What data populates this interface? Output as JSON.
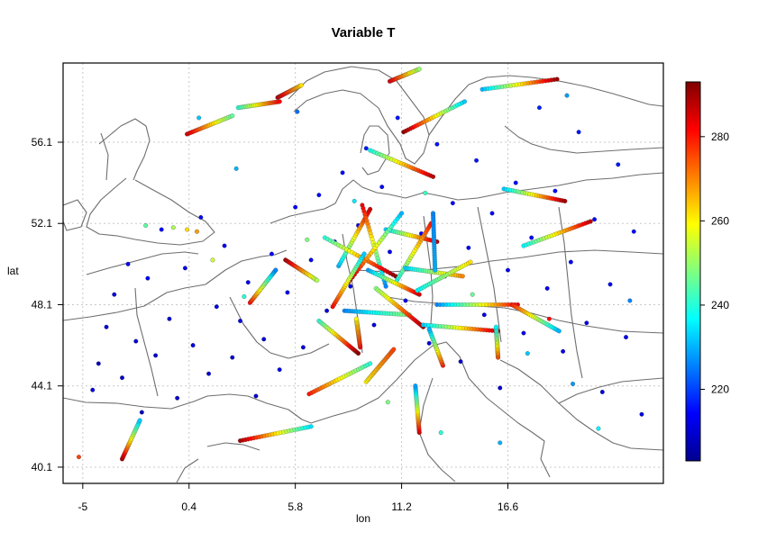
{
  "chart_data": {
    "type": "scatter",
    "title": "Variable T",
    "xlabel": "lon",
    "ylabel": "lat",
    "xlim": [
      -6.0,
      24.5
    ],
    "ylim": [
      39.3,
      60.0
    ],
    "x_ticks": [
      -5,
      0.4,
      5.8,
      11.2,
      16.6
    ],
    "x_tick_labels": [
      "-5",
      "0.4",
      "5.8",
      "11.2",
      "16.6"
    ],
    "y_ticks": [
      40.1,
      44.1,
      48.1,
      52.1,
      56.1
    ],
    "y_tick_labels": [
      "40.1",
      "44.1",
      "48.1",
      "52.1",
      "56.1"
    ],
    "grid": true,
    "basemap": "Europe coastlines and country borders",
    "colorbar": {
      "label": "",
      "range": [
        203,
        293
      ],
      "ticks": [
        220,
        240,
        260,
        280
      ],
      "tick_labels": [
        "220",
        "240",
        "260",
        "280"
      ],
      "colormap": "jet"
    },
    "series": [
      {
        "note_type": "scattered surface/low-level observations",
        "points": [
          [
            -4.5,
            43.9,
            212
          ],
          [
            -4.2,
            45.2,
            208
          ],
          [
            -3.8,
            47.0,
            210
          ],
          [
            -3.4,
            48.6,
            211
          ],
          [
            -3.0,
            44.5,
            209
          ],
          [
            -2.7,
            50.1,
            212
          ],
          [
            -2.3,
            46.3,
            210
          ],
          [
            -2.0,
            42.8,
            208
          ],
          [
            -1.7,
            49.4,
            213
          ],
          [
            -1.3,
            45.6,
            209
          ],
          [
            -1.0,
            51.8,
            214
          ],
          [
            -0.6,
            47.4,
            210
          ],
          [
            -0.2,
            43.5,
            209
          ],
          [
            0.2,
            49.9,
            212
          ],
          [
            0.6,
            46.1,
            211
          ],
          [
            1.0,
            52.4,
            215
          ],
          [
            1.4,
            44.7,
            210
          ],
          [
            1.8,
            48.0,
            211
          ],
          [
            2.2,
            51.0,
            213
          ],
          [
            2.6,
            45.5,
            210
          ],
          [
            3.0,
            47.3,
            212
          ],
          [
            3.4,
            49.2,
            213
          ],
          [
            3.8,
            43.6,
            209
          ],
          [
            4.2,
            46.4,
            210
          ],
          [
            4.6,
            50.6,
            214
          ],
          [
            5.0,
            44.9,
            211
          ],
          [
            5.4,
            48.7,
            212
          ],
          [
            5.8,
            52.9,
            214
          ],
          [
            6.2,
            46.0,
            210
          ],
          [
            6.6,
            50.3,
            213
          ],
          [
            7.0,
            53.5,
            215
          ],
          [
            7.4,
            47.8,
            211
          ],
          [
            7.8,
            51.2,
            213
          ],
          [
            8.2,
            54.6,
            215
          ],
          [
            8.6,
            49.0,
            212
          ],
          [
            9.0,
            52.0,
            214
          ],
          [
            9.4,
            55.8,
            216
          ],
          [
            9.8,
            47.1,
            211
          ],
          [
            10.2,
            53.9,
            214
          ],
          [
            10.6,
            50.7,
            213
          ],
          [
            11.0,
            57.3,
            216
          ],
          [
            11.4,
            48.3,
            212
          ],
          [
            11.8,
            54.8,
            215
          ],
          [
            12.2,
            51.6,
            214
          ],
          [
            12.6,
            46.2,
            211
          ],
          [
            13.0,
            56.0,
            216
          ],
          [
            13.4,
            49.5,
            213
          ],
          [
            13.8,
            53.1,
            215
          ],
          [
            14.2,
            45.3,
            210
          ],
          [
            14.6,
            50.9,
            214
          ],
          [
            15.0,
            55.2,
            216
          ],
          [
            15.4,
            47.6,
            212
          ],
          [
            15.8,
            52.6,
            214
          ],
          [
            16.2,
            44.0,
            210
          ],
          [
            16.6,
            49.8,
            213
          ],
          [
            17.0,
            54.1,
            215
          ],
          [
            17.4,
            46.7,
            212
          ],
          [
            17.8,
            51.4,
            214
          ],
          [
            18.2,
            57.8,
            217
          ],
          [
            18.6,
            48.9,
            213
          ],
          [
            19.0,
            53.7,
            215
          ],
          [
            19.4,
            45.8,
            212
          ],
          [
            19.8,
            50.2,
            214
          ],
          [
            20.2,
            56.6,
            216
          ],
          [
            20.6,
            47.2,
            213
          ],
          [
            21.0,
            52.3,
            215
          ],
          [
            21.4,
            43.8,
            211
          ],
          [
            21.8,
            49.1,
            214
          ],
          [
            22.2,
            55.0,
            216
          ],
          [
            22.6,
            46.5,
            213
          ],
          [
            23.0,
            51.7,
            215
          ],
          [
            23.4,
            42.7,
            211
          ],
          [
            -0.4,
            51.9,
            252
          ],
          [
            0.3,
            51.8,
            262
          ],
          [
            0.8,
            51.7,
            268
          ],
          [
            -1.8,
            52.0,
            245
          ],
          [
            1.6,
            50.3,
            255
          ],
          [
            3.2,
            48.5,
            240
          ],
          [
            4.8,
            49.8,
            238
          ],
          [
            6.4,
            51.3,
            248
          ],
          [
            8.8,
            53.2,
            235
          ],
          [
            12.4,
            53.6,
            242
          ],
          [
            14.8,
            48.6,
            246
          ],
          [
            17.6,
            45.7,
            232
          ],
          [
            18.7,
            47.4,
            281
          ],
          [
            19.9,
            44.2,
            228
          ],
          [
            21.2,
            42.0,
            236
          ],
          [
            22.8,
            48.3,
            226
          ],
          [
            13.2,
            41.8,
            240
          ],
          [
            10.5,
            43.3,
            248
          ],
          [
            2.8,
            54.8,
            230
          ],
          [
            5.9,
            57.6,
            224
          ],
          [
            -5.2,
            40.6,
            276
          ],
          [
            0.9,
            57.3,
            232
          ],
          [
            16.2,
            41.3,
            230
          ],
          [
            19.6,
            58.4,
            228
          ]
        ]
      }
    ],
    "tracks": [
      {
        "from": [
          -3.0,
          40.5
        ],
        "to": [
          -2.1,
          42.4
        ],
        "t0": 290,
        "t1": 232
      },
      {
        "from": [
          0.3,
          56.5
        ],
        "to": [
          2.6,
          57.4
        ],
        "t0": 286,
        "t1": 245
      },
      {
        "from": [
          4.9,
          58.3
        ],
        "to": [
          6.1,
          58.9
        ],
        "t0": 289,
        "t1": 262
      },
      {
        "from": [
          2.9,
          57.8
        ],
        "to": [
          5.0,
          58.1
        ],
        "t0": 240,
        "t1": 282
      },
      {
        "from": [
          15.3,
          58.7
        ],
        "to": [
          19.1,
          59.2
        ],
        "t0": 230,
        "t1": 291
      },
      {
        "from": [
          11.3,
          56.6
        ],
        "to": [
          14.4,
          58.1
        ],
        "t0": 292,
        "t1": 232
      },
      {
        "from": [
          10.6,
          59.1
        ],
        "to": [
          12.1,
          59.7
        ],
        "t0": 286,
        "t1": 250
      },
      {
        "from": [
          9.6,
          55.7
        ],
        "to": [
          12.8,
          54.4
        ],
        "t0": 238,
        "t1": 288
      },
      {
        "from": [
          16.4,
          53.8
        ],
        "to": [
          19.5,
          53.2
        ],
        "t0": 232,
        "t1": 290
      },
      {
        "from": [
          17.4,
          51.0
        ],
        "to": [
          20.8,
          52.2
        ],
        "t0": 236,
        "t1": 287
      },
      {
        "from": [
          8.0,
          50.0
        ],
        "to": [
          9.6,
          52.8
        ],
        "t0": 230,
        "t1": 286
      },
      {
        "from": [
          9.2,
          53.0
        ],
        "to": [
          10.4,
          49.0
        ],
        "t0": 284,
        "t1": 226
      },
      {
        "from": [
          10.4,
          51.8
        ],
        "to": [
          13.0,
          51.2
        ],
        "t0": 232,
        "t1": 288
      },
      {
        "from": [
          7.3,
          51.4
        ],
        "to": [
          10.9,
          49.5
        ],
        "t0": 240,
        "t1": 292
      },
      {
        "from": [
          8.5,
          49.2
        ],
        "to": [
          11.2,
          52.6
        ],
        "t0": 290,
        "t1": 230
      },
      {
        "from": [
          10.9,
          49.2
        ],
        "to": [
          12.7,
          52.1
        ],
        "t0": 236,
        "t1": 280
      },
      {
        "from": [
          7.7,
          48.0
        ],
        "to": [
          9.3,
          50.6
        ],
        "t0": 282,
        "t1": 232
      },
      {
        "from": [
          9.5,
          49.8
        ],
        "to": [
          12.1,
          48.6
        ],
        "t0": 228,
        "t1": 286
      },
      {
        "from": [
          8.3,
          47.8
        ],
        "to": [
          11.6,
          47.6
        ],
        "t0": 226,
        "t1": 250
      },
      {
        "from": [
          11.4,
          49.9
        ],
        "to": [
          14.3,
          49.5
        ],
        "t0": 232,
        "t1": 270
      },
      {
        "from": [
          12.0,
          48.8
        ],
        "to": [
          14.7,
          50.2
        ],
        "t0": 236,
        "t1": 262
      },
      {
        "from": [
          7.0,
          47.3
        ],
        "to": [
          9.0,
          45.7
        ],
        "t0": 240,
        "t1": 292
      },
      {
        "from": [
          9.9,
          48.9
        ],
        "to": [
          12.3,
          47.0
        ],
        "t0": 248,
        "t1": 290
      },
      {
        "from": [
          3.5,
          48.2
        ],
        "to": [
          4.8,
          49.8
        ],
        "t0": 282,
        "t1": 226
      },
      {
        "from": [
          5.3,
          50.3
        ],
        "to": [
          6.9,
          49.3
        ],
        "t0": 290,
        "t1": 252
      },
      {
        "from": [
          13.0,
          48.1
        ],
        "to": [
          17.1,
          48.1
        ],
        "t0": 226,
        "t1": 283
      },
      {
        "from": [
          16.8,
          48.1
        ],
        "to": [
          19.2,
          46.8
        ],
        "t0": 280,
        "t1": 230
      },
      {
        "from": [
          12.3,
          47.1
        ],
        "to": [
          16.1,
          46.8
        ],
        "t0": 232,
        "t1": 288
      },
      {
        "from": [
          6.5,
          43.7
        ],
        "to": [
          9.6,
          45.2
        ],
        "t0": 280,
        "t1": 240
      },
      {
        "from": [
          9.4,
          44.3
        ],
        "to": [
          10.8,
          45.9
        ],
        "t0": 260,
        "t1": 276
      },
      {
        "from": [
          3.0,
          41.4
        ],
        "to": [
          6.6,
          42.1
        ],
        "t0": 290,
        "t1": 234
      },
      {
        "from": [
          12.1,
          41.8
        ],
        "to": [
          11.9,
          44.1
        ],
        "t0": 286,
        "t1": 228
      },
      {
        "from": [
          13.3,
          45.1
        ],
        "to": [
          12.6,
          46.9
        ],
        "t0": 280,
        "t1": 230
      },
      {
        "from": [
          16.1,
          45.5
        ],
        "to": [
          16.0,
          47.0
        ],
        "t0": 276,
        "t1": 236
      },
      {
        "from": [
          9.1,
          46.0
        ],
        "to": [
          8.9,
          47.4
        ],
        "t0": 282,
        "t1": 260
      },
      {
        "from": [
          12.8,
          52.6
        ],
        "to": [
          12.9,
          49.8
        ],
        "t0": 226,
        "t1": 230
      }
    ]
  }
}
